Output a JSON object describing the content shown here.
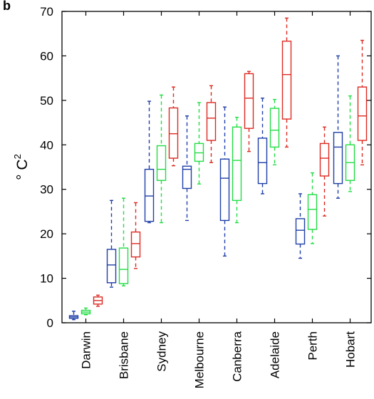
{
  "chart_data": {
    "type": "boxplot",
    "ylabel": "° C",
    "ylabel_superscript": "2",
    "ylim": [
      0,
      70
    ],
    "yticks": [
      0,
      10,
      20,
      30,
      40,
      50,
      60,
      70
    ],
    "grid": false,
    "corner_label": "b",
    "categories": [
      "Darwin",
      "Brisbane",
      "Sydney",
      "Melbourne",
      "Canberra",
      "Adelaide",
      "Perth",
      "Hobart"
    ],
    "series": [
      {
        "color": "#1f3fa8",
        "boxes": [
          {
            "min": 0.7,
            "q1": 1.0,
            "median": 1.3,
            "q3": 1.6,
            "max": 2.6
          },
          {
            "min": 8.0,
            "q1": 9.0,
            "median": 13.0,
            "q3": 16.5,
            "max": 27.5
          },
          {
            "min": 22.5,
            "q1": 22.8,
            "median": 28.5,
            "q3": 34.5,
            "max": 49.8
          },
          {
            "min": 23.0,
            "q1": 30.2,
            "median": 34.5,
            "q3": 35.2,
            "max": 46.5
          },
          {
            "min": 15.0,
            "q1": 23.0,
            "median": 32.5,
            "q3": 36.8,
            "max": 48.5
          },
          {
            "min": 29.0,
            "q1": 31.3,
            "median": 36.0,
            "q3": 41.5,
            "max": 50.5
          },
          {
            "min": 14.5,
            "q1": 17.7,
            "median": 20.8,
            "q3": 23.4,
            "max": 29.0
          },
          {
            "min": 28.0,
            "q1": 31.3,
            "median": 39.5,
            "q3": 42.8,
            "max": 60.0
          }
        ]
      },
      {
        "color": "#22dd44",
        "boxes": [
          {
            "min": 1.8,
            "q1": 2.0,
            "median": 2.4,
            "q3": 2.8,
            "max": 3.3
          },
          {
            "min": 8.3,
            "q1": 8.8,
            "median": 12.0,
            "q3": 16.8,
            "max": 28.0
          },
          {
            "min": 22.5,
            "q1": 32.0,
            "median": 34.5,
            "q3": 39.8,
            "max": 51.2
          },
          {
            "min": 31.2,
            "q1": 36.3,
            "median": 38.2,
            "q3": 40.3,
            "max": 49.5
          },
          {
            "min": 22.5,
            "q1": 27.5,
            "median": 36.5,
            "q3": 44.0,
            "max": 46.2
          },
          {
            "min": 35.5,
            "q1": 39.5,
            "median": 43.3,
            "q3": 48.2,
            "max": 50.2
          },
          {
            "min": 17.8,
            "q1": 21.0,
            "median": 25.5,
            "q3": 28.8,
            "max": 33.7
          },
          {
            "min": 29.5,
            "q1": 32.0,
            "median": 36.0,
            "q3": 40.0,
            "max": 51.0
          }
        ]
      },
      {
        "color": "#dd2a22",
        "boxes": [
          {
            "min": 3.7,
            "q1": 4.2,
            "median": 5.0,
            "q3": 5.8,
            "max": 6.2
          },
          {
            "min": 12.2,
            "q1": 14.8,
            "median": 17.8,
            "q3": 20.4,
            "max": 27.0
          },
          {
            "min": 35.3,
            "q1": 37.0,
            "median": 42.5,
            "q3": 48.3,
            "max": 53.0
          },
          {
            "min": 36.0,
            "q1": 41.0,
            "median": 46.0,
            "q3": 49.5,
            "max": 53.3
          },
          {
            "min": 38.5,
            "q1": 43.7,
            "median": 50.5,
            "q3": 56.0,
            "max": 56.5
          },
          {
            "min": 39.5,
            "q1": 45.8,
            "median": 55.8,
            "q3": 63.3,
            "max": 68.5
          },
          {
            "min": 24.0,
            "q1": 33.0,
            "median": 37.0,
            "q3": 40.3,
            "max": 44.0
          },
          {
            "min": 35.5,
            "q1": 41.0,
            "median": 46.5,
            "q3": 53.0,
            "max": 63.5
          }
        ]
      }
    ]
  }
}
